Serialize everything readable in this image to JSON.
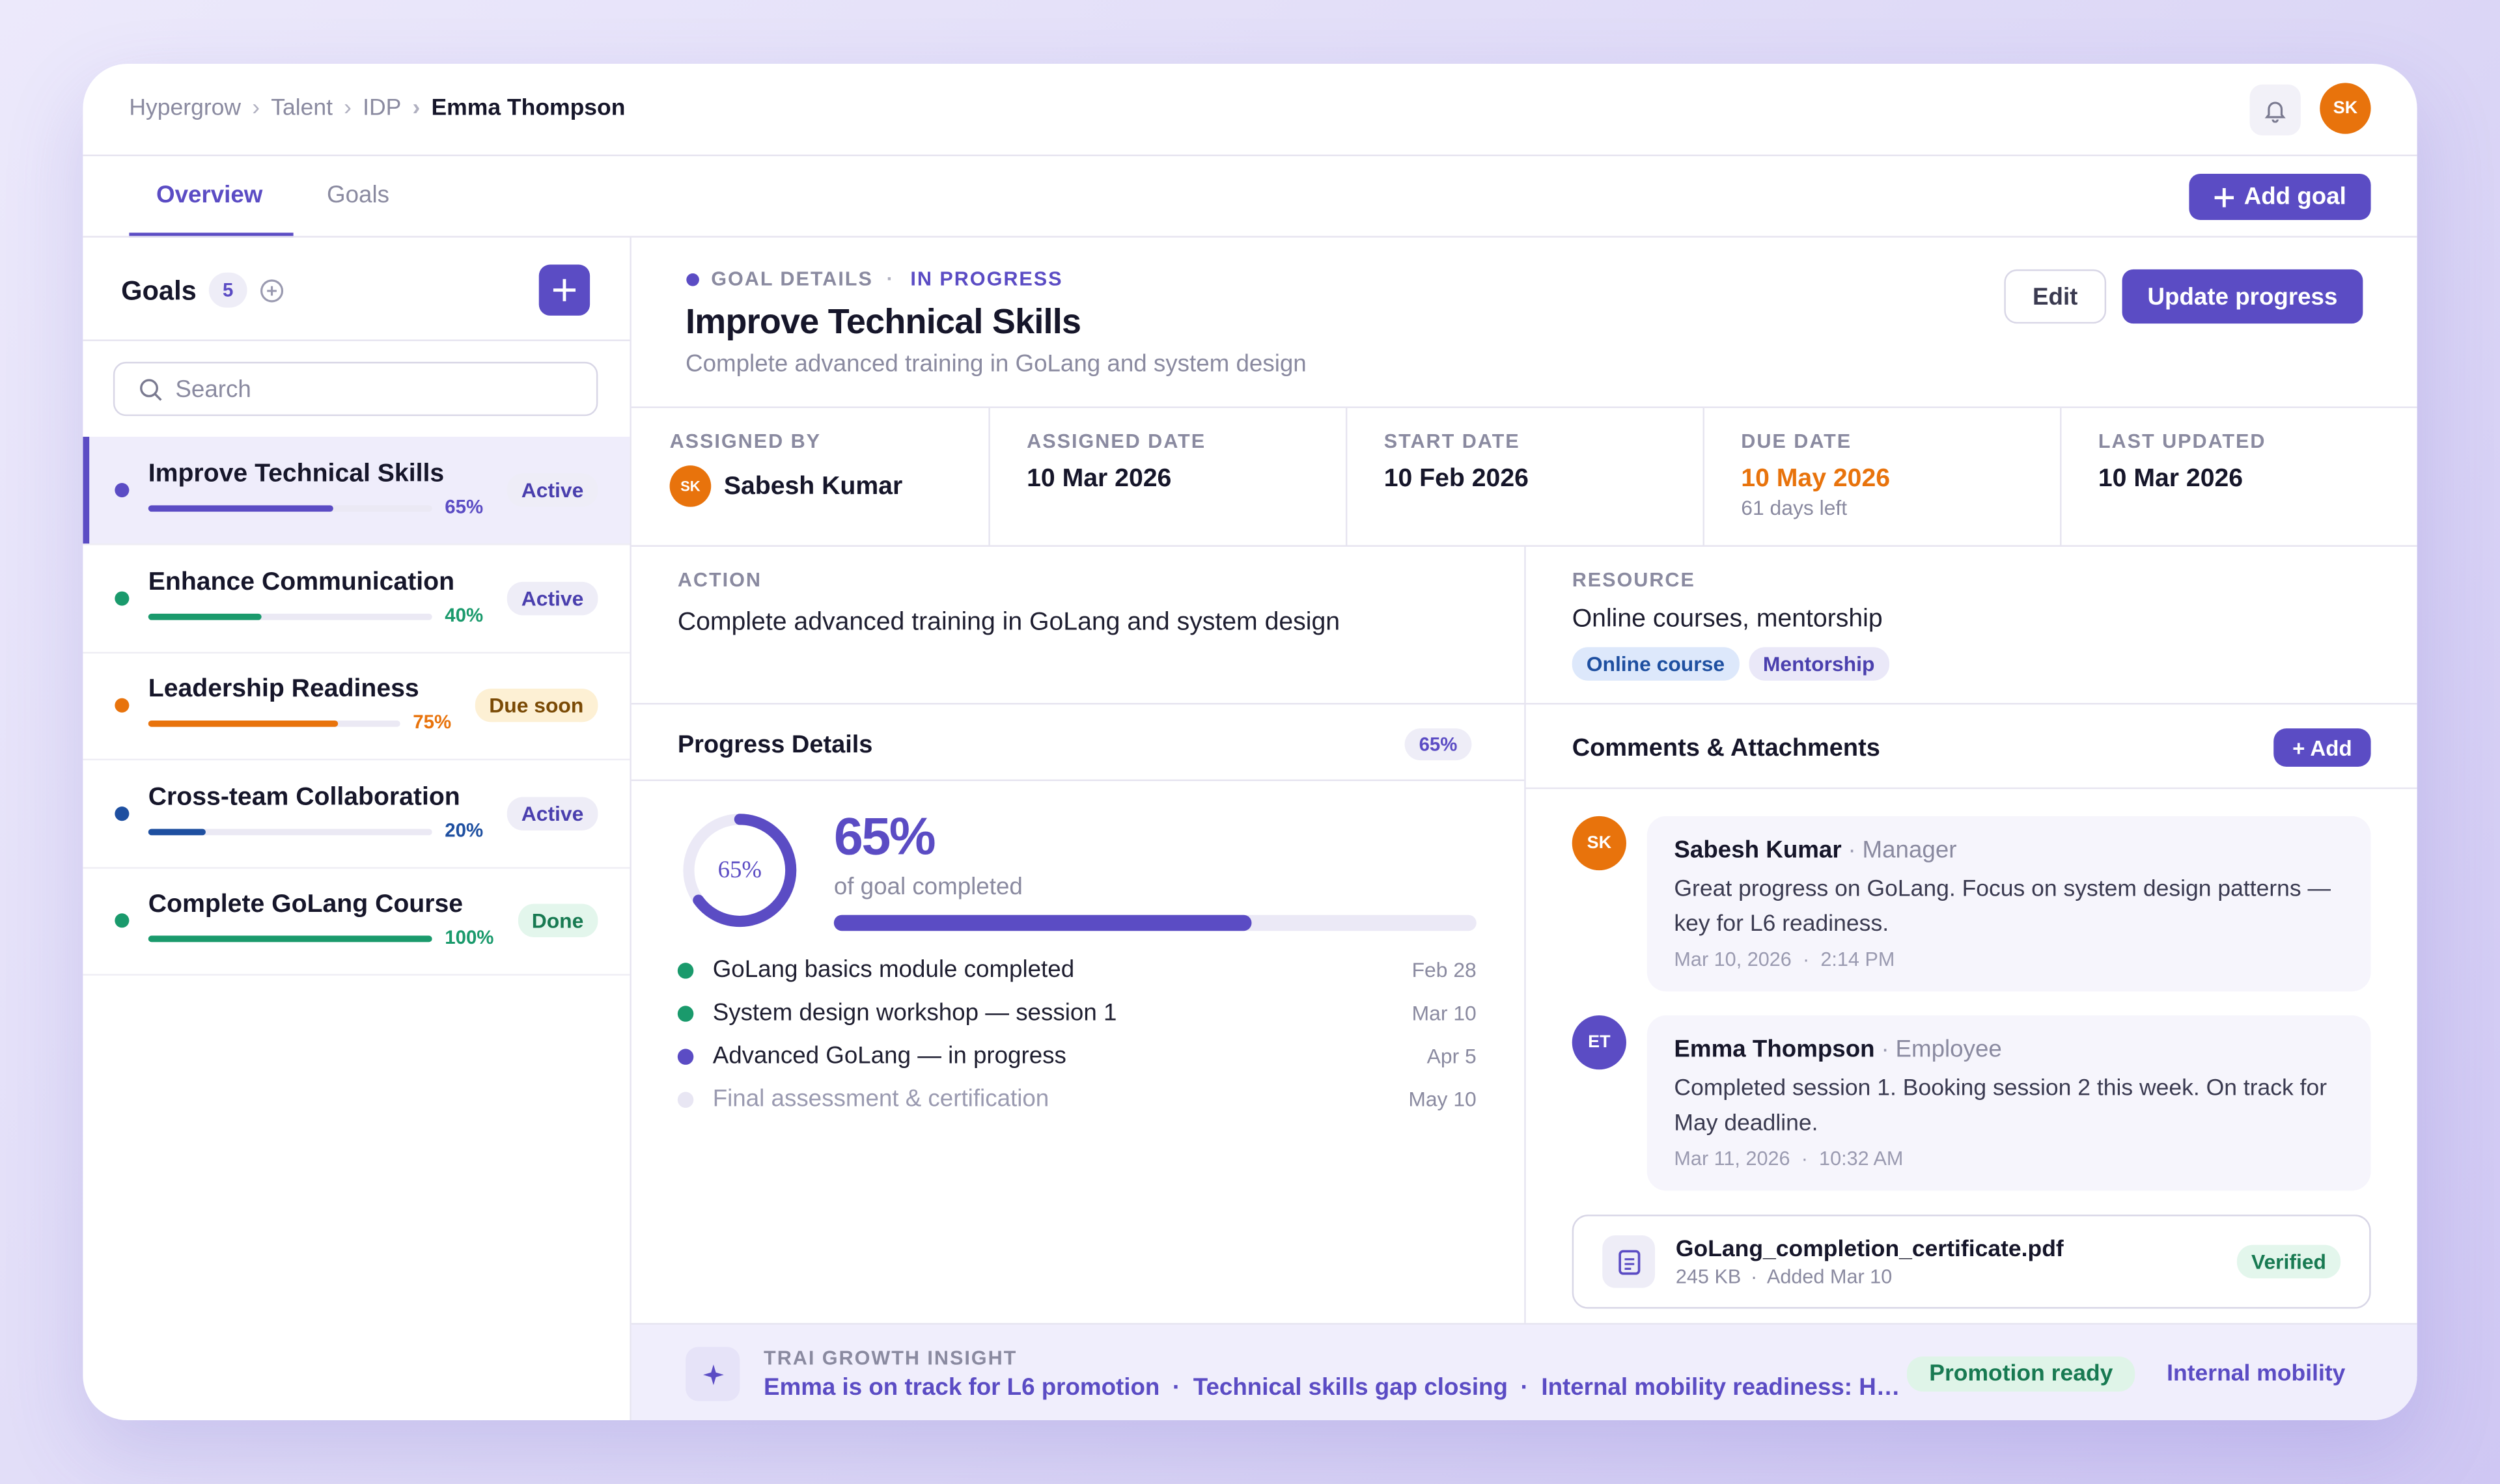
{
  "breadcrumb": [
    "Hypergrow",
    "Talent",
    "IDP",
    "Emma Thompson"
  ],
  "user_initials": "SK",
  "tabs": [
    "Overview",
    "Goals"
  ],
  "add_goal": "Add goal",
  "sidebar": {
    "title": "Goals",
    "count": "5",
    "search_placeholder": "Search",
    "goals": [
      {
        "name": "Improve Technical Skills",
        "progress": "65%",
        "status": "Active",
        "color": "#5b4cc4"
      },
      {
        "name": "Enhance Communication",
        "progress": "40%",
        "status": "Active",
        "color": "#1a9a6c"
      },
      {
        "name": "Leadership Readiness",
        "progress": "75%",
        "status": "Due soon",
        "color": "#e8730c"
      },
      {
        "name": "Cross-team Collaboration",
        "progress": "20%",
        "status": "Active",
        "color": "#1e4fa0"
      },
      {
        "name": "Complete GoLang Course",
        "progress": "100%",
        "status": "Done",
        "color": "#1a9a6c"
      }
    ]
  },
  "detail": {
    "eyebrow": "GOAL DETAILS",
    "status": "IN PROGRESS",
    "title": "Improve Technical Skills",
    "description": "Complete advanced training in GoLang and system design",
    "edit": "Edit",
    "update": "Update progress",
    "meta": [
      {
        "label": "ASSIGNED BY",
        "value": "Sabesh Kumar",
        "initials": "SK"
      },
      {
        "label": "ASSIGNED DATE",
        "value": "10 Mar 2026"
      },
      {
        "label": "START DATE",
        "value": "10 Feb 2026"
      },
      {
        "label": "DUE DATE",
        "value": "10 May 2026",
        "sub": "61 days left"
      },
      {
        "label": "LAST UPDATED",
        "value": "10 Mar 2026"
      }
    ],
    "action": {
      "label": "ACTION",
      "text": "Complete advanced training in GoLang and system design"
    },
    "resource": {
      "label": "RESOURCE",
      "text": "Online courses, mentorship",
      "tags": [
        "Online course",
        "Mentorship"
      ]
    }
  },
  "progress": {
    "title": "Progress Details",
    "badge": "65%",
    "percent": "65%",
    "caption": "of goal completed",
    "milestones": [
      {
        "text": "GoLang basics module completed",
        "date": "Feb 28",
        "state": "done"
      },
      {
        "text": "System design workshop — session 1",
        "date": "Mar 10",
        "state": "done"
      },
      {
        "text": "Advanced GoLang — in progress",
        "date": "Apr 5",
        "state": "active"
      },
      {
        "text": "Final assessment & certification",
        "date": "May 10",
        "state": "pending"
      }
    ]
  },
  "comments": {
    "title": "Comments & Attachments",
    "add": "+ Add",
    "items": [
      {
        "initials": "SK",
        "name": "Sabesh Kumar",
        "role": "Manager",
        "text": "Great progress on GoLang. Focus on system design patterns — key for L6 readiness.",
        "date": "Mar 10, 2026",
        "time": "2:14 PM",
        "color": "#e8730c"
      },
      {
        "initials": "ET",
        "name": "Emma Thompson",
        "role": "Employee",
        "text": "Completed session 1. Booking session 2 this week. On track for May deadline.",
        "date": "Mar 11, 2026",
        "time": "10:32 AM",
        "color": "#5b4cc4"
      }
    ],
    "attachment": {
      "name": "GoLang_completion_certificate.pdf",
      "size": "245 KB",
      "added": "Added Mar 10",
      "badge": "Verified"
    }
  },
  "insight": {
    "label": "TRAI GROWTH INSIGHT",
    "items": [
      "Emma is on track for L6 promotion",
      "Technical skills gap closing",
      "Internal mobility readiness: H…"
    ],
    "badges": [
      "Promotion ready",
      "Internal mobility"
    ]
  }
}
